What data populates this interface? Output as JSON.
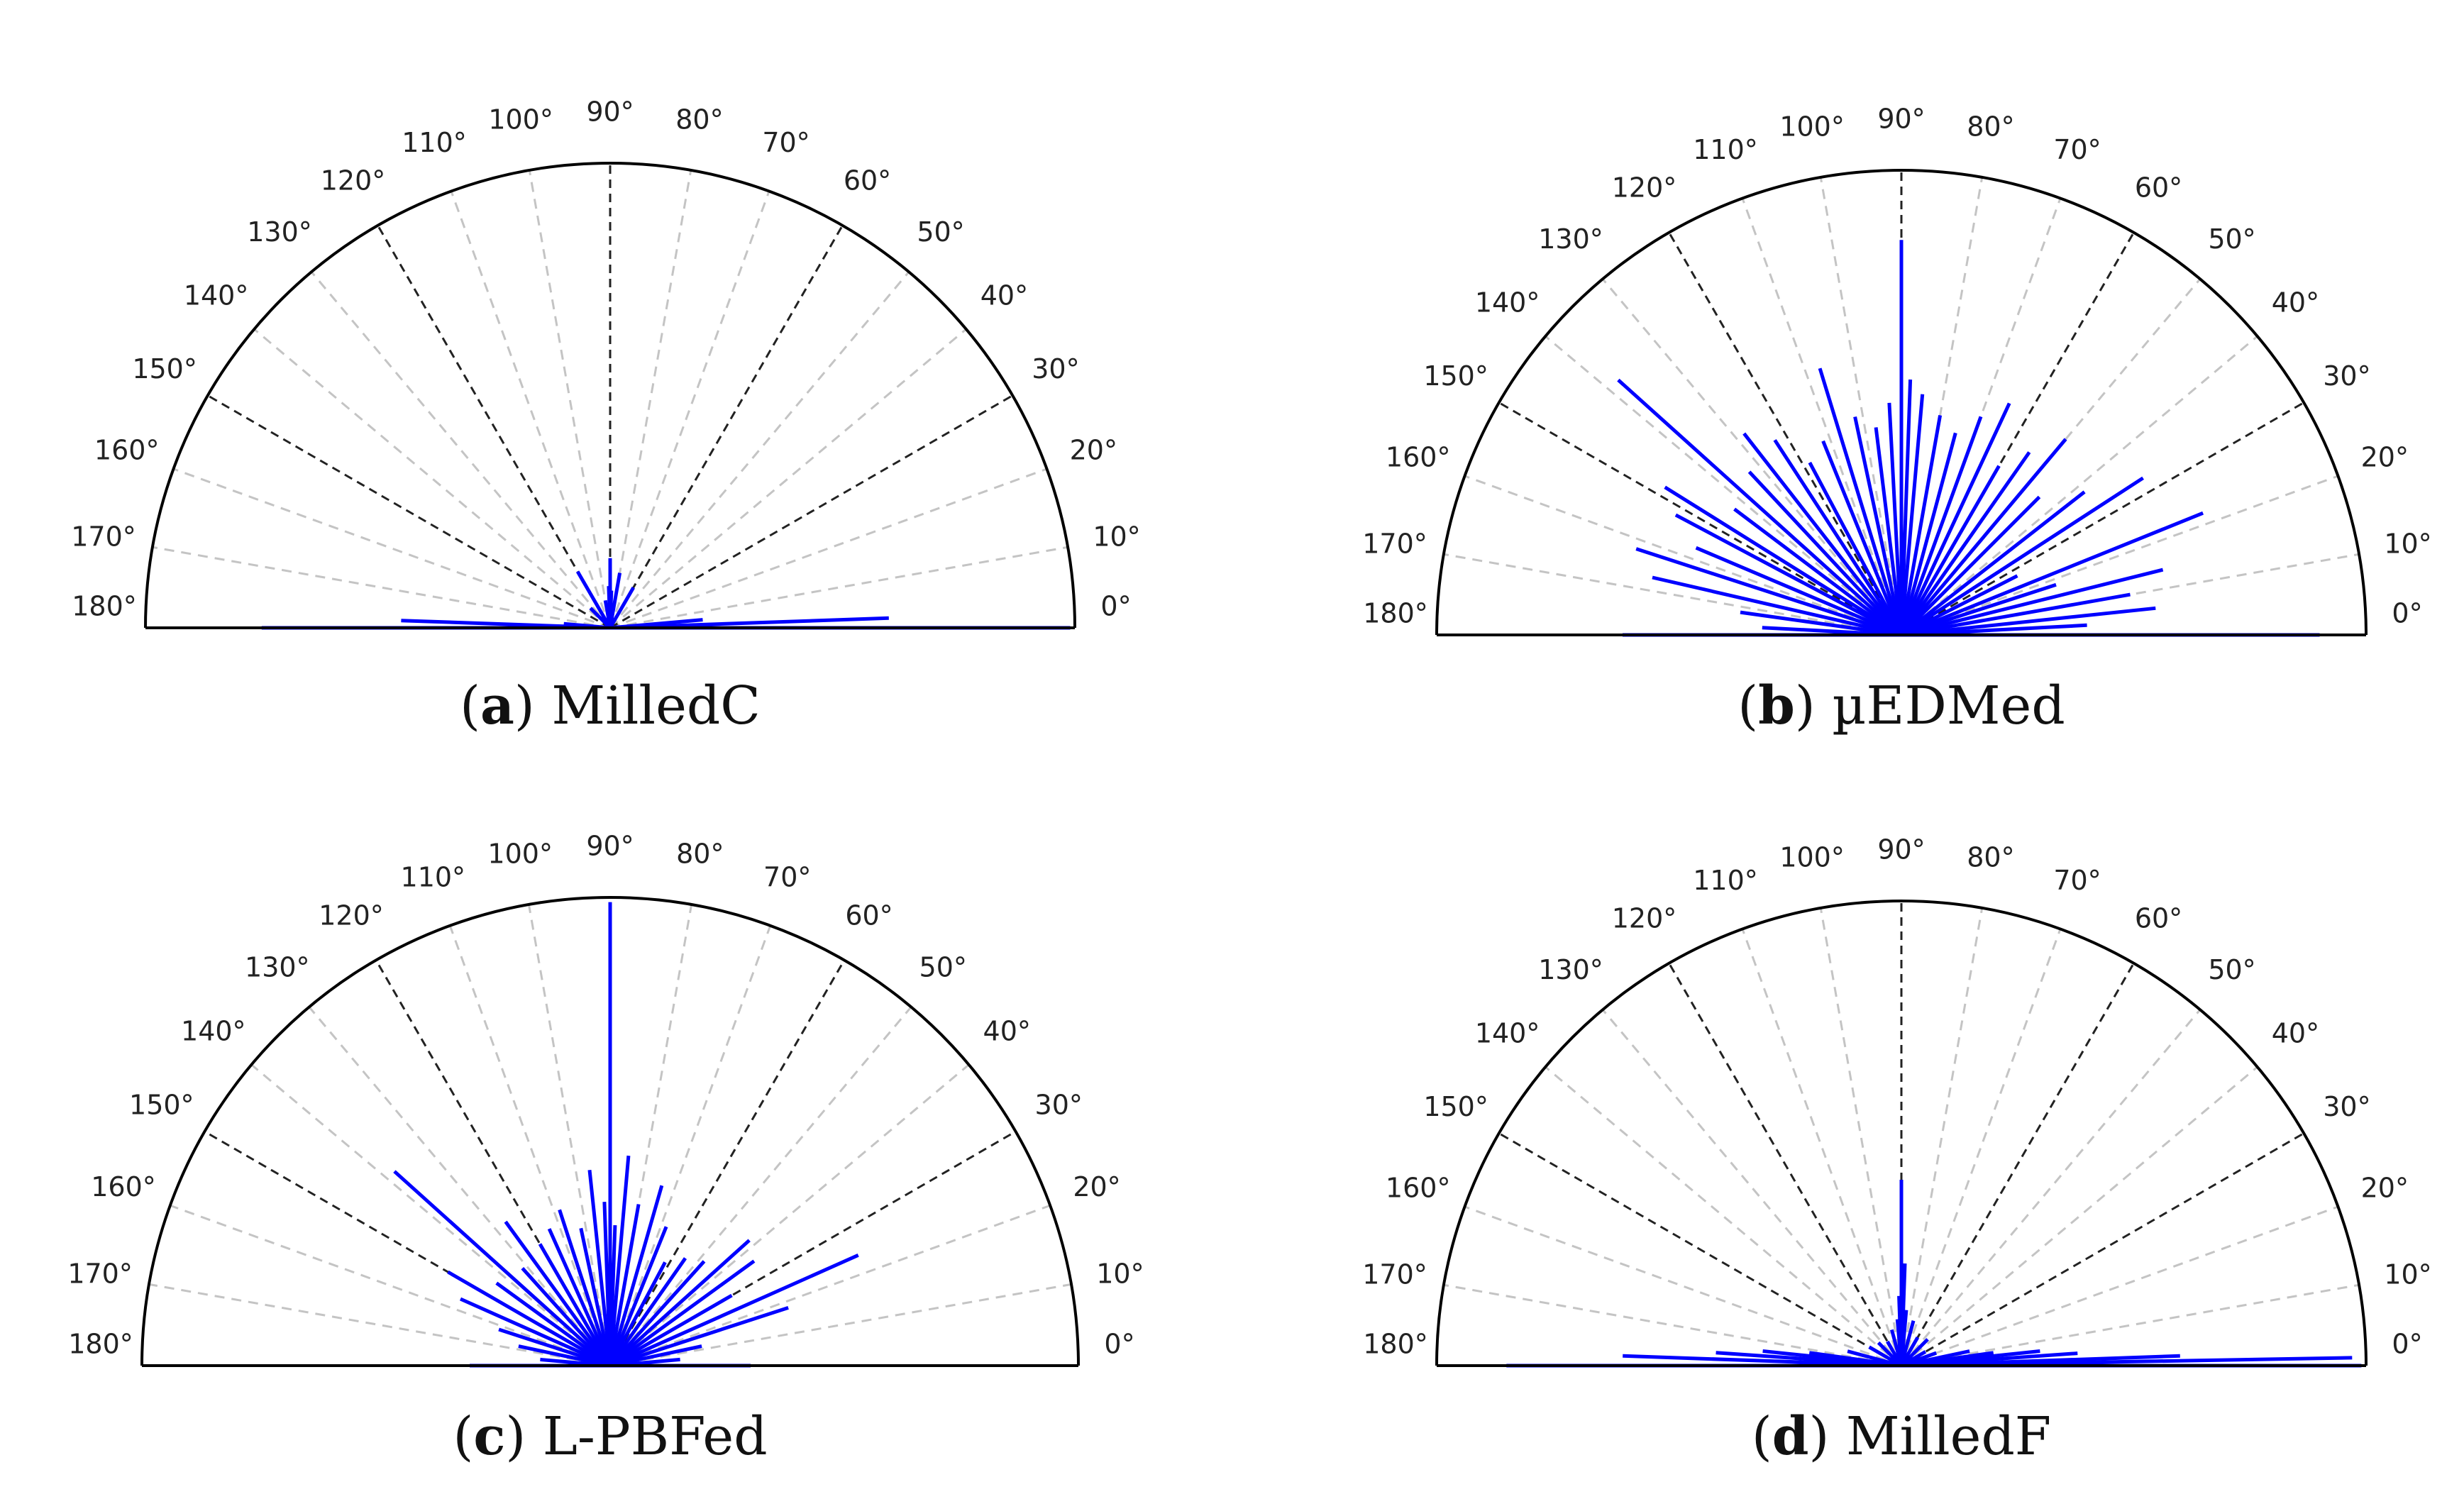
{
  "chart_data": [
    {
      "type": "polar",
      "panel": "a",
      "caption_letter": "a",
      "caption_text": "MilledC",
      "theta_range_deg": [
        0,
        180
      ],
      "major_angles_deg": [
        0,
        30,
        60,
        90,
        120,
        150,
        180
      ],
      "minor_angles_deg": [
        10,
        20,
        40,
        50,
        70,
        80,
        100,
        110,
        130,
        140,
        160,
        170
      ],
      "tick_labels": [
        "0°",
        "10°",
        "20°",
        "30°",
        "40°",
        "50°",
        "60°",
        "70°",
        "80°",
        "90°",
        "100°",
        "110°",
        "120°",
        "130°",
        "140°",
        "150°",
        "160°",
        "170°",
        "180°"
      ],
      "series_color": "#0000ff",
      "angles_deg": [
        0,
        2,
        5,
        60,
        80,
        88,
        90,
        92,
        100,
        120,
        135,
        175,
        178,
        180
      ],
      "magnitudes": [
        0.99,
        0.6,
        0.2,
        0.1,
        0.12,
        0.08,
        0.15,
        0.09,
        0.06,
        0.14,
        0.06,
        0.1,
        0.45,
        0.75
      ]
    },
    {
      "type": "polar",
      "panel": "b",
      "caption_letter": "b",
      "caption_text": "µEDMed",
      "theta_range_deg": [
        0,
        180
      ],
      "major_angles_deg": [
        0,
        30,
        60,
        90,
        120,
        150,
        180
      ],
      "minor_angles_deg": [
        10,
        20,
        40,
        50,
        70,
        80,
        100,
        110,
        130,
        140,
        160,
        170
      ],
      "tick_labels": [
        "0°",
        "10°",
        "20°",
        "30°",
        "40°",
        "50°",
        "60°",
        "70°",
        "80°",
        "90°",
        "100°",
        "110°",
        "120°",
        "130°",
        "140°",
        "150°",
        "160°",
        "170°",
        "180°"
      ],
      "series_color": "#0000ff",
      "angles_deg": [
        0,
        3,
        6,
        10,
        14,
        18,
        22,
        27,
        33,
        38,
        45,
        50,
        55,
        60,
        65,
        70,
        75,
        80,
        85,
        88,
        90,
        93,
        97,
        102,
        107,
        112,
        118,
        123,
        128,
        133,
        138,
        143,
        148,
        152,
        157,
        162,
        167,
        172,
        177,
        180
      ],
      "magnitudes": [
        0.9,
        0.4,
        0.55,
        0.5,
        0.58,
        0.35,
        0.7,
        0.28,
        0.62,
        0.5,
        0.42,
        0.55,
        0.48,
        0.42,
        0.55,
        0.5,
        0.45,
        0.48,
        0.52,
        0.55,
        0.85,
        0.5,
        0.45,
        0.48,
        0.6,
        0.45,
        0.42,
        0.5,
        0.55,
        0.48,
        0.82,
        0.45,
        0.6,
        0.55,
        0.48,
        0.6,
        0.55,
        0.35,
        0.3,
        0.6
      ]
    },
    {
      "type": "polar",
      "panel": "c",
      "caption_letter": "c",
      "caption_text": "L-PBFed",
      "theta_range_deg": [
        0,
        180
      ],
      "major_angles_deg": [
        0,
        30,
        60,
        90,
        120,
        150,
        180
      ],
      "minor_angles_deg": [
        10,
        20,
        40,
        50,
        70,
        80,
        100,
        110,
        130,
        140,
        160,
        170
      ],
      "tick_labels": [
        "0°",
        "10°",
        "20°",
        "30°",
        "40°",
        "50°",
        "60°",
        "70°",
        "80°",
        "90°",
        "100°",
        "110°",
        "120°",
        "130°",
        "140°",
        "150°",
        "160°",
        "170°",
        "180°"
      ],
      "series_color": "#0000ff",
      "angles_deg": [
        0,
        5,
        12,
        18,
        24,
        30,
        36,
        42,
        48,
        55,
        62,
        68,
        74,
        80,
        85,
        88,
        90,
        92,
        96,
        102,
        108,
        114,
        120,
        126,
        132,
        138,
        144,
        150,
        156,
        162,
        168,
        175,
        180
      ],
      "magnitudes": [
        0.3,
        0.15,
        0.2,
        0.4,
        0.58,
        0.3,
        0.38,
        0.4,
        0.3,
        0.28,
        0.25,
        0.32,
        0.4,
        0.35,
        0.45,
        0.3,
        0.99,
        0.35,
        0.42,
        0.3,
        0.35,
        0.32,
        0.3,
        0.38,
        0.28,
        0.62,
        0.3,
        0.4,
        0.35,
        0.25,
        0.2,
        0.15,
        0.3
      ]
    },
    {
      "type": "polar",
      "panel": "d",
      "caption_letter": "d",
      "caption_text": "MilledF",
      "theta_range_deg": [
        0,
        180
      ],
      "major_angles_deg": [
        0,
        30,
        60,
        90,
        120,
        150,
        180
      ],
      "minor_angles_deg": [
        10,
        20,
        40,
        50,
        70,
        80,
        100,
        110,
        130,
        140,
        160,
        170
      ],
      "tick_labels": [
        "0°",
        "10°",
        "20°",
        "30°",
        "40°",
        "50°",
        "60°",
        "70°",
        "80°",
        "90°",
        "100°",
        "110°",
        "120°",
        "130°",
        "140°",
        "150°",
        "160°",
        "170°",
        "180°"
      ],
      "series_color": "#0000ff",
      "angles_deg": [
        0,
        1,
        2,
        4,
        6,
        8,
        12,
        20,
        30,
        45,
        60,
        75,
        85,
        88,
        90,
        92,
        95,
        105,
        120,
        135,
        150,
        165,
        172,
        174,
        176,
        178,
        180
      ],
      "magnitudes": [
        0.99,
        0.97,
        0.6,
        0.38,
        0.3,
        0.2,
        0.15,
        0.08,
        0.06,
        0.08,
        0.07,
        0.1,
        0.12,
        0.22,
        0.4,
        0.15,
        0.1,
        0.08,
        0.06,
        0.07,
        0.08,
        0.12,
        0.2,
        0.3,
        0.4,
        0.6,
        0.85
      ]
    }
  ]
}
